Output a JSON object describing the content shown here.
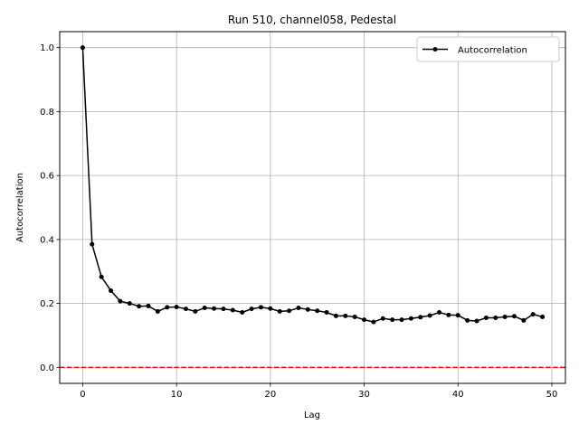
{
  "chart_data": {
    "type": "line",
    "title": "Run 510, channel058, Pedestal",
    "xlabel": "Lag",
    "ylabel": "Autocorrelation",
    "xlim": [
      -2.45,
      51.45
    ],
    "ylim": [
      -0.05,
      1.05
    ],
    "xticks": [
      0,
      10,
      20,
      30,
      40,
      50
    ],
    "yticks": [
      0.0,
      0.2,
      0.4,
      0.6,
      0.8,
      1.0
    ],
    "xtick_labels": [
      "0",
      "10",
      "20",
      "30",
      "40",
      "50"
    ],
    "ytick_labels": [
      "0.0",
      "0.2",
      "0.4",
      "0.6",
      "0.8",
      "1.0"
    ],
    "grid": true,
    "legend": {
      "position": "top-right",
      "entries": [
        "Autocorrelation"
      ]
    },
    "series": [
      {
        "name": "Autocorrelation",
        "color": "#000000",
        "marker": "circle",
        "x": [
          0,
          1,
          2,
          3,
          4,
          5,
          6,
          7,
          8,
          9,
          10,
          11,
          12,
          13,
          14,
          15,
          16,
          17,
          18,
          19,
          20,
          21,
          22,
          23,
          24,
          25,
          26,
          27,
          28,
          29,
          30,
          31,
          32,
          33,
          34,
          35,
          36,
          37,
          38,
          39,
          40,
          41,
          42,
          43,
          44,
          45,
          46,
          47,
          48,
          49
        ],
        "y": [
          1.0,
          0.385,
          0.283,
          0.24,
          0.207,
          0.2,
          0.191,
          0.192,
          0.175,
          0.188,
          0.189,
          0.183,
          0.175,
          0.186,
          0.184,
          0.183,
          0.179,
          0.172,
          0.183,
          0.188,
          0.184,
          0.175,
          0.177,
          0.186,
          0.181,
          0.177,
          0.172,
          0.161,
          0.161,
          0.158,
          0.149,
          0.142,
          0.153,
          0.149,
          0.149,
          0.153,
          0.157,
          0.162,
          0.172,
          0.164,
          0.163,
          0.147,
          0.145,
          0.155,
          0.155,
          0.158,
          0.16,
          0.147,
          0.166,
          0.158
        ]
      }
    ],
    "reference_line": {
      "y": 0.0,
      "color": "#ff0000",
      "style": "dashed"
    }
  }
}
